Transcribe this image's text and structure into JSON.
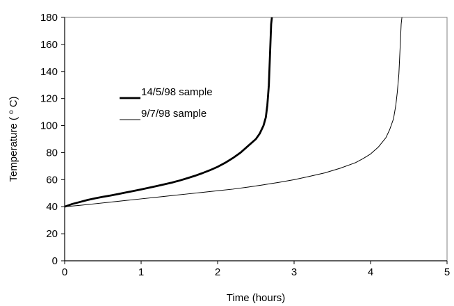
{
  "chart_data": {
    "type": "line",
    "title": "",
    "xlabel": "Time (hours)",
    "ylabel_parts": {
      "before": "Temperature (",
      "superscript": "o",
      "after": "C)"
    },
    "xlim": [
      0,
      5
    ],
    "ylim": [
      0,
      180
    ],
    "x_ticks": [
      0,
      1,
      2,
      3,
      4,
      5
    ],
    "y_ticks": [
      0,
      20,
      40,
      60,
      80,
      100,
      120,
      140,
      160,
      180
    ],
    "grid": false,
    "legend_position": "center-left",
    "series": [
      {
        "name": "14/5/98 sample",
        "color": "#000000",
        "line_style": "thick",
        "x": [
          0,
          0.1,
          0.2,
          0.3,
          0.4,
          0.5,
          0.6,
          0.7,
          0.8,
          0.9,
          1.0,
          1.1,
          1.2,
          1.3,
          1.4,
          1.5,
          1.6,
          1.7,
          1.8,
          1.9,
          2.0,
          2.1,
          2.2,
          2.3,
          2.4,
          2.5,
          2.55,
          2.6,
          2.63,
          2.65,
          2.67,
          2.68,
          2.69,
          2.7,
          2.71
        ],
        "y": [
          40,
          42,
          43.5,
          45,
          46.2,
          47.3,
          48.3,
          49.4,
          50.5,
          51.6,
          52.8,
          54,
          55.2,
          56.5,
          57.8,
          59.3,
          61,
          62.8,
          64.8,
          67,
          69.5,
          72.5,
          76,
          80,
          85,
          90,
          94,
          100,
          106,
          115,
          130,
          145,
          160,
          175,
          180
        ]
      },
      {
        "name": "9/7/98 sample",
        "color": "#000000",
        "line_style": "thin",
        "x": [
          0,
          0.2,
          0.4,
          0.6,
          0.8,
          1.0,
          1.2,
          1.4,
          1.6,
          1.8,
          2.0,
          2.2,
          2.4,
          2.6,
          2.8,
          3.0,
          3.2,
          3.4,
          3.6,
          3.8,
          3.9,
          4.0,
          4.1,
          4.2,
          4.25,
          4.3,
          4.33,
          4.35,
          4.37,
          4.38,
          4.39,
          4.4,
          4.41
        ],
        "y": [
          40,
          41,
          42.2,
          43.4,
          44.6,
          45.8,
          47,
          48.2,
          49.4,
          50.6,
          51.8,
          53,
          54.5,
          56.2,
          58,
          60,
          62.4,
          65,
          68.4,
          72.5,
          75.5,
          79,
          84,
          91,
          97,
          105,
          115,
          125,
          138,
          150,
          162,
          175,
          180
        ]
      }
    ]
  }
}
